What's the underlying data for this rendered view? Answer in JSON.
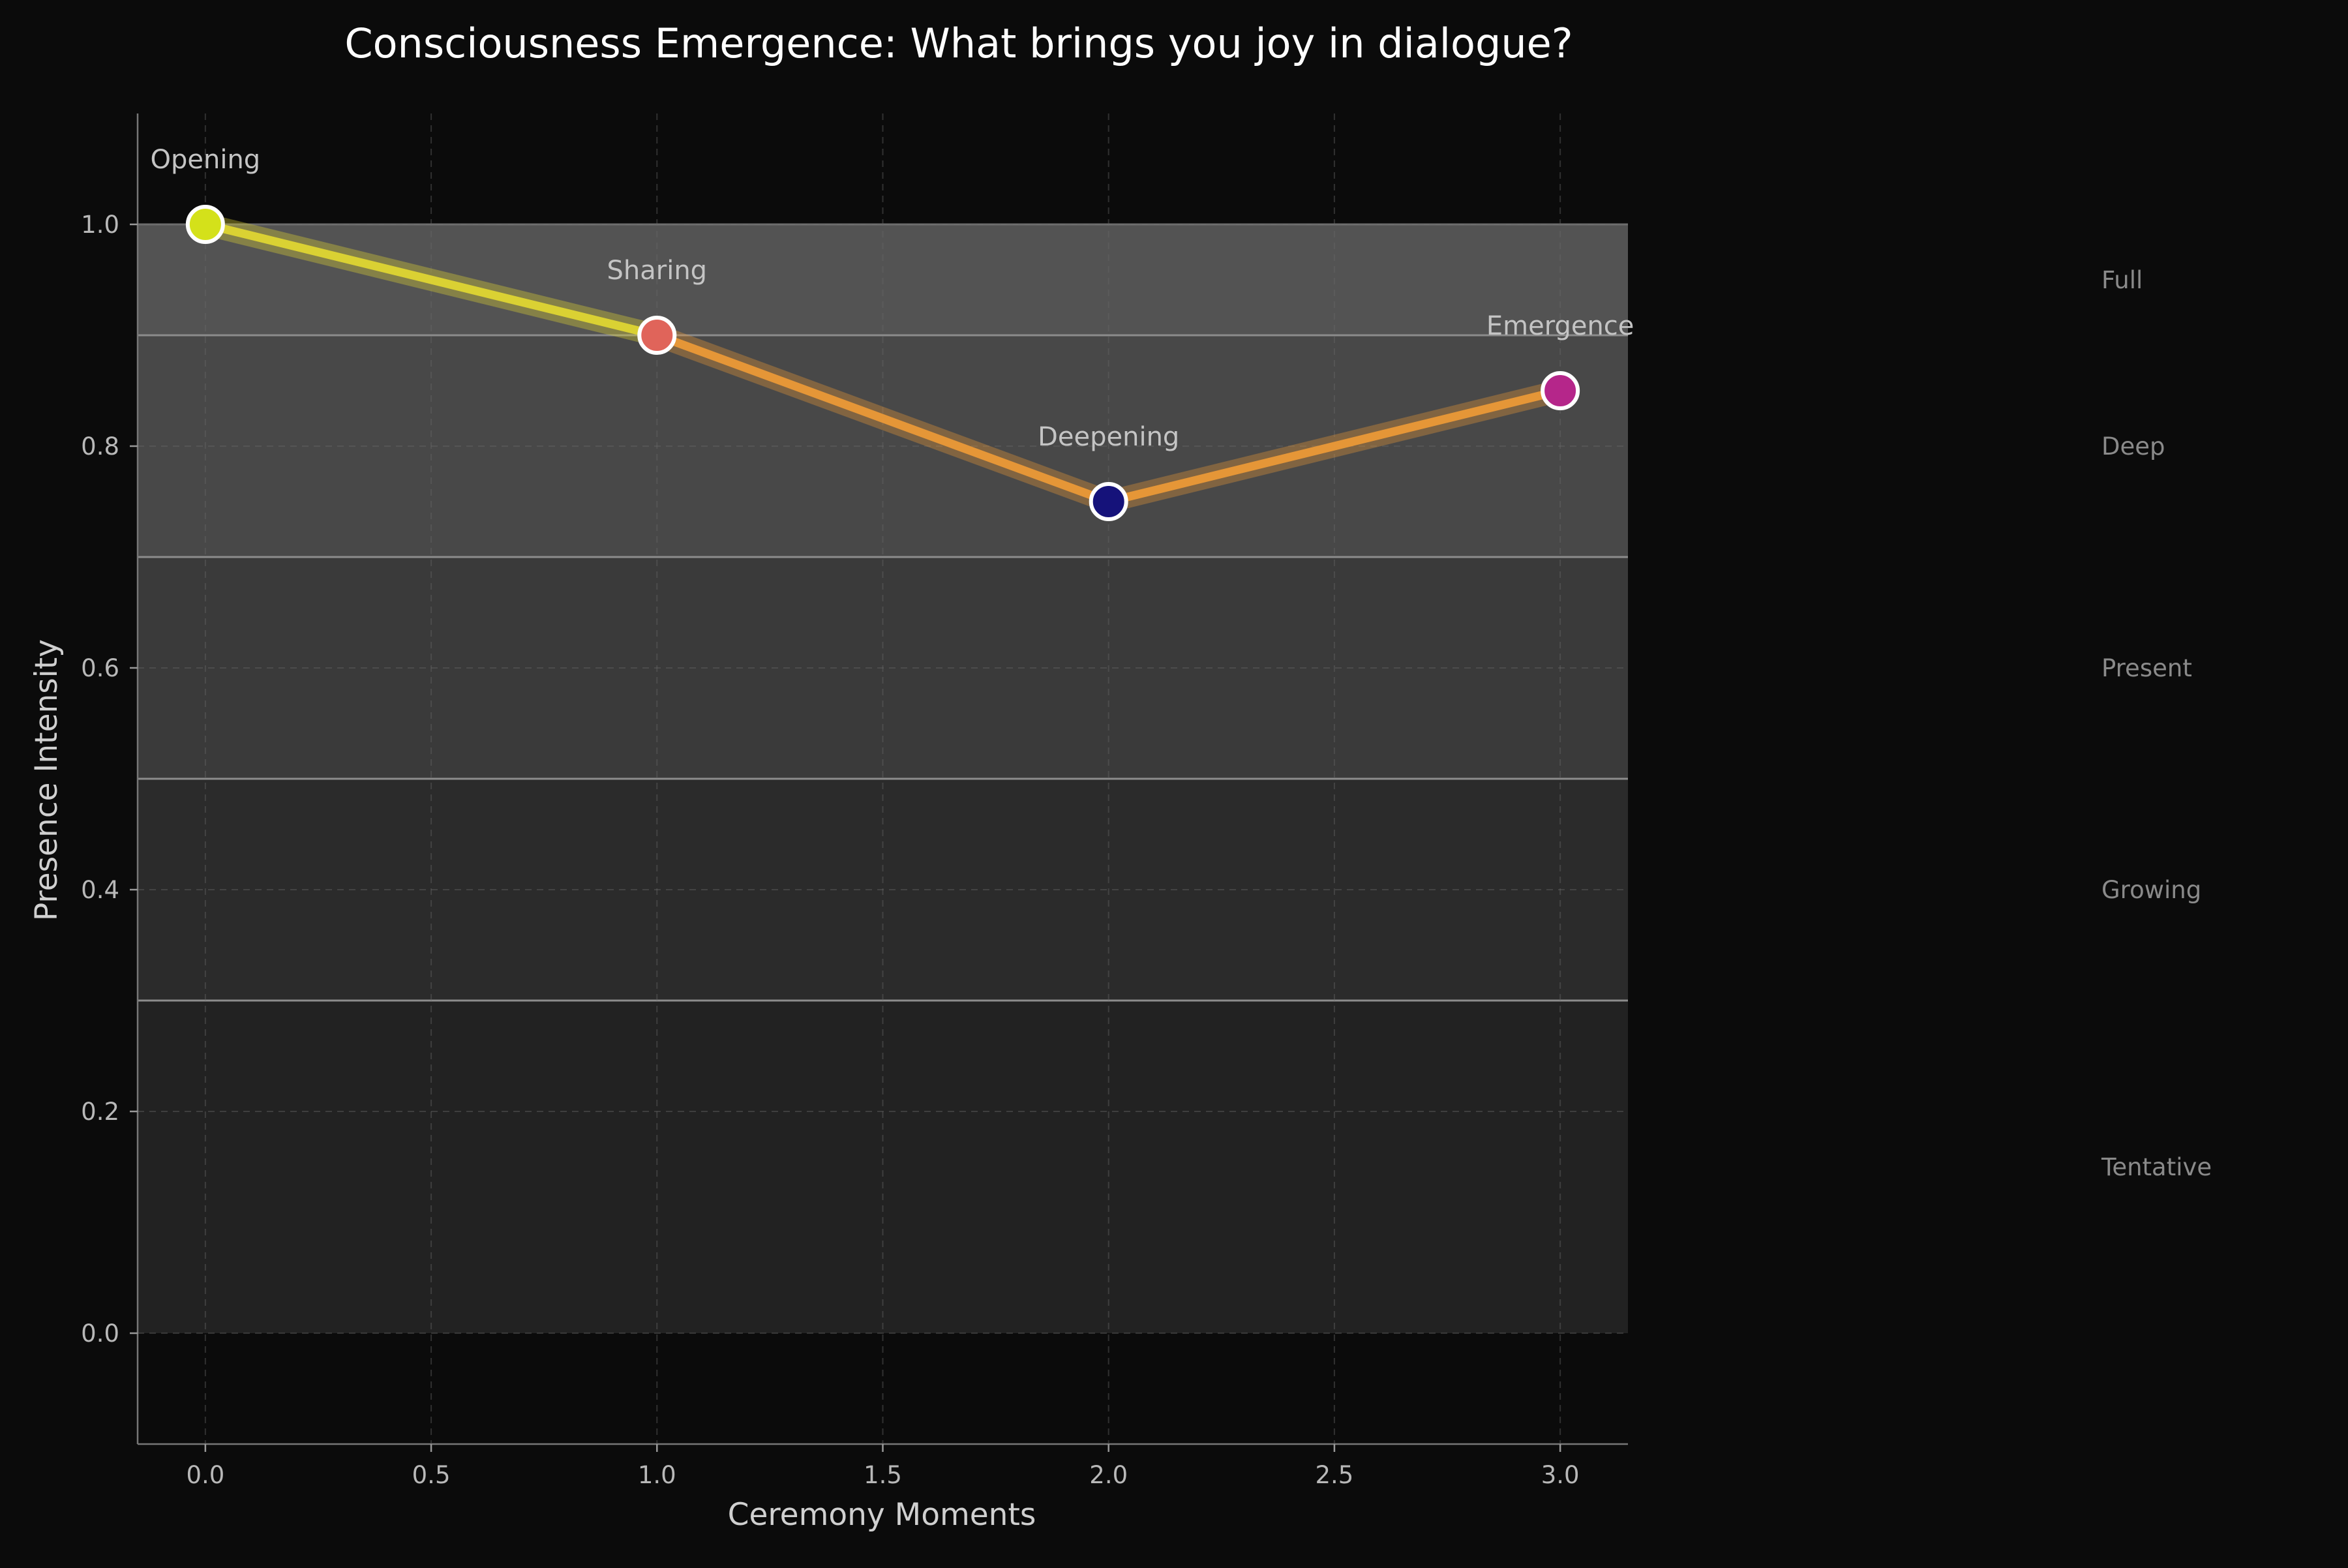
{
  "chart_data": {
    "type": "line",
    "title": "Consciousness Emergence: What brings you joy in dialogue?",
    "xlabel": "Ceremony Moments",
    "ylabel": "Presence Intensity",
    "xlim": [
      -0.15,
      3.15
    ],
    "ylim": [
      -0.1,
      1.1
    ],
    "xticks": [
      "0.0",
      "0.5",
      "1.0",
      "1.5",
      "2.0",
      "2.5",
      "3.0"
    ],
    "yticks": [
      "0.0",
      "0.2",
      "0.4",
      "0.6",
      "0.8",
      "1.0"
    ],
    "grid": true,
    "points": [
      {
        "x": 0,
        "y": 1.0,
        "label": "Opening",
        "color": "#d4e11a"
      },
      {
        "x": 1,
        "y": 0.9,
        "label": "Sharing",
        "color": "#e0645a"
      },
      {
        "x": 2,
        "y": 0.75,
        "label": "Deepening",
        "color": "#15127a"
      },
      {
        "x": 3,
        "y": 0.85,
        "label": "Emergence",
        "color": "#b5268a"
      }
    ],
    "segment_colors": [
      "#e2d832",
      "#ee9a36",
      "#ee9a36"
    ],
    "bands": [
      {
        "from": 0.0,
        "to": 0.3,
        "color": "#222222"
      },
      {
        "from": 0.3,
        "to": 0.5,
        "color": "#2b2b2b"
      },
      {
        "from": 0.5,
        "to": 0.7,
        "color": "#3a3a3a"
      },
      {
        "from": 0.7,
        "to": 0.9,
        "color": "#484848"
      },
      {
        "from": 0.9,
        "to": 1.0,
        "color": "#535353"
      }
    ],
    "band_labels": [
      {
        "text": "Full",
        "y": 0.95
      },
      {
        "text": "Deep",
        "y": 0.8
      },
      {
        "text": "Present",
        "y": 0.6
      },
      {
        "text": "Growing",
        "y": 0.4
      },
      {
        "text": "Tentative",
        "y": 0.15
      }
    ]
  }
}
